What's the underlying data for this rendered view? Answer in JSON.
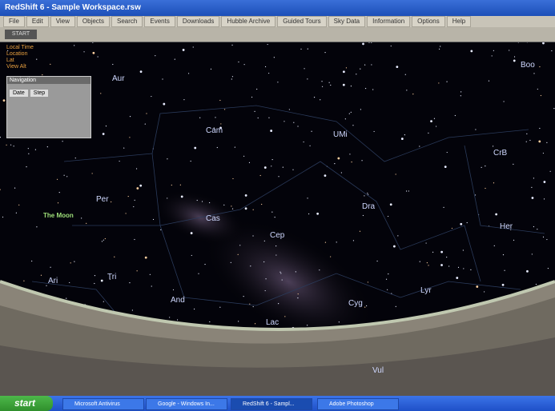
{
  "window": {
    "title": "RedShift 6 - Sample Workspace.rsw"
  },
  "menu": [
    "File",
    "Edit",
    "View",
    "Objects",
    "Search",
    "Events",
    "Downloads",
    "Hubble Archive",
    "Guided Tours",
    "Sky Data",
    "Information",
    "Options",
    "Help"
  ],
  "toolbar": {
    "start_button": "START"
  },
  "info": [
    "Local Time",
    "Location",
    "Lat",
    "View Alt"
  ],
  "navigation": {
    "title": "Navigation",
    "tabs": [
      "Date",
      "Step"
    ]
  },
  "sky": {
    "constellations": [
      "Aur",
      "Cam",
      "UMi",
      "Boo",
      "CrB",
      "Per",
      "Dra",
      "Cas",
      "Cep",
      "Her",
      "Ari",
      "Tri",
      "And",
      "Lac",
      "Cyg",
      "Lyr",
      "Vul"
    ],
    "moon": "The Moon"
  },
  "taskbar": {
    "start": "start",
    "items": [
      "Microsoft Antivirus",
      "Google - Windows In...",
      "RedShift 6 - Sampl...",
      "Adobe Photoshop"
    ]
  }
}
